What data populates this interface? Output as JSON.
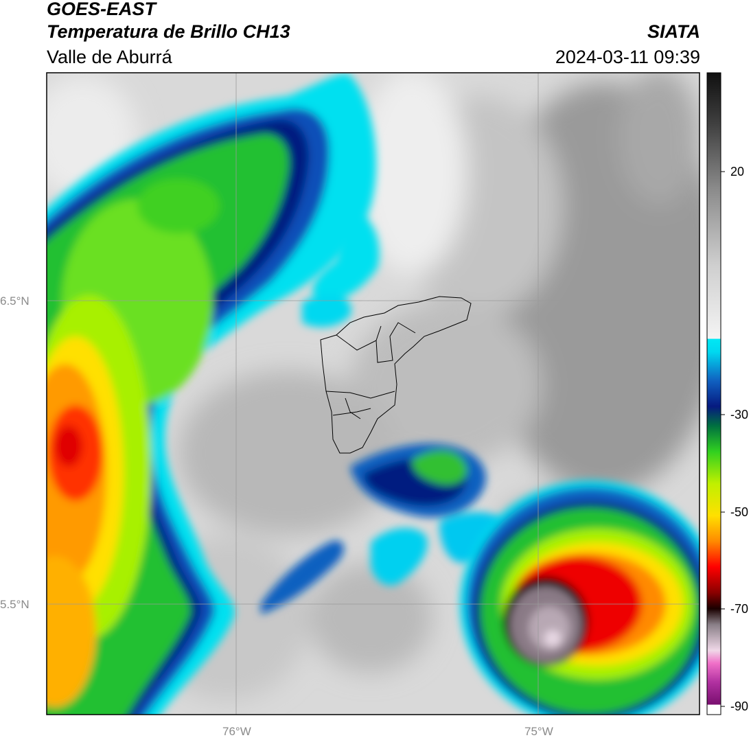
{
  "header": {
    "satellite": "GOES-EAST",
    "product": "Temperatura de Brillo CH13",
    "region": "Valle de Aburrá",
    "institution": "SIATA",
    "timestamp": "2024-03-11 09:39"
  },
  "map": {
    "latitude_labels": [
      "6.5°N",
      "5.5°N"
    ],
    "longitude_labels": [
      "76°W",
      "75°W"
    ],
    "gridlines": true,
    "overlay": "Valle de Aburrá municipal boundaries (black outlines)"
  },
  "colorbar": {
    "tick_labels": [
      "20",
      "-30",
      "-50",
      "-70",
      "-90"
    ],
    "range": [
      -90,
      35
    ],
    "colors": {
      "warm": "#e8e8e8",
      "cyan": "#00e5f0",
      "blue": "#0a1e96",
      "green": "#00c020",
      "lime": "#a0f000",
      "yellow": "#ffee00",
      "orange": "#ff8800",
      "red": "#ee0000",
      "black": "#150000",
      "magenta": "#c030b0"
    }
  }
}
